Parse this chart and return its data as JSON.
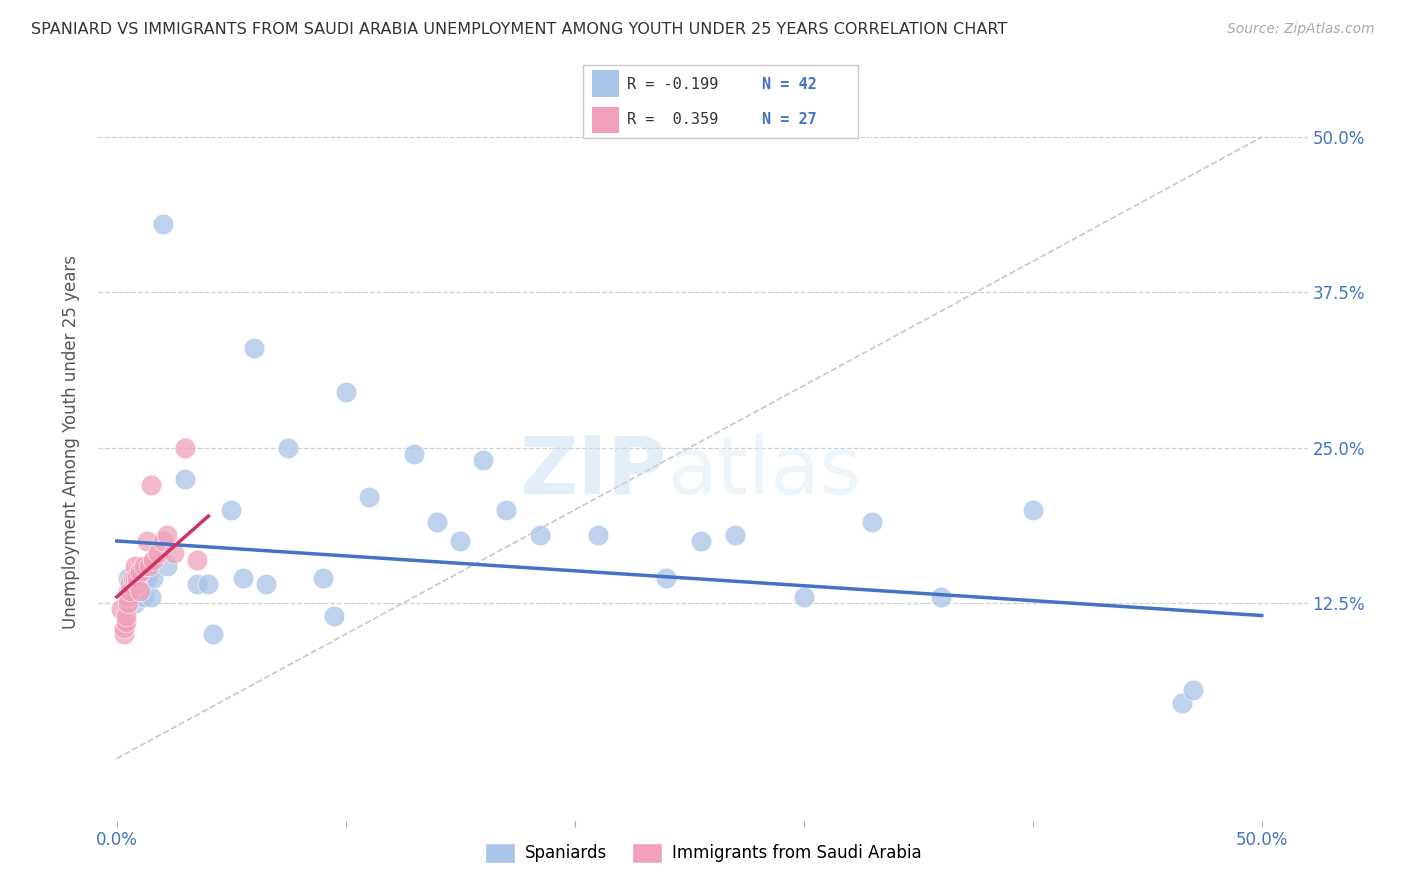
{
  "title": "SPANIARD VS IMMIGRANTS FROM SAUDI ARABIA UNEMPLOYMENT AMONG YOUTH UNDER 25 YEARS CORRELATION CHART",
  "source": "Source: ZipAtlas.com",
  "ylabel": "Unemployment Among Youth under 25 years",
  "ytick_values": [
    0.125,
    0.25,
    0.375,
    0.5
  ],
  "ytick_labels": [
    "12.5%",
    "25.0%",
    "37.5%",
    "50.0%"
  ],
  "xlim": [
    0.0,
    0.5
  ],
  "ylim": [
    -0.05,
    0.56
  ],
  "watermark_zip": "ZIP",
  "watermark_atlas": "atlas",
  "blue_color": "#a8c4e8",
  "pink_color": "#f0a0b8",
  "blue_line_color": "#4472c4",
  "pink_line_color": "#cc3366",
  "diag_line_color": "#c8c8c8",
  "legend_r1_text": "R = -0.199",
  "legend_n1_text": "N = 42",
  "legend_r2_text": "R =  0.359",
  "legend_n2_text": "N = 27",
  "spaniards_x": [
    0.005,
    0.005,
    0.008,
    0.01,
    0.01,
    0.012,
    0.012,
    0.013,
    0.013,
    0.015,
    0.016,
    0.02,
    0.022,
    0.03,
    0.035,
    0.04,
    0.042,
    0.05,
    0.055,
    0.06,
    0.065,
    0.075,
    0.09,
    0.095,
    0.1,
    0.11,
    0.13,
    0.14,
    0.15,
    0.16,
    0.17,
    0.185,
    0.21,
    0.24,
    0.255,
    0.27,
    0.3,
    0.33,
    0.36,
    0.4,
    0.465,
    0.47
  ],
  "spaniards_y": [
    0.145,
    0.135,
    0.125,
    0.15,
    0.14,
    0.145,
    0.13,
    0.145,
    0.155,
    0.13,
    0.145,
    0.43,
    0.155,
    0.225,
    0.14,
    0.14,
    0.1,
    0.2,
    0.145,
    0.33,
    0.14,
    0.25,
    0.145,
    0.115,
    0.295,
    0.21,
    0.245,
    0.19,
    0.175,
    0.24,
    0.2,
    0.18,
    0.18,
    0.145,
    0.175,
    0.18,
    0.13,
    0.19,
    0.13,
    0.2,
    0.045,
    0.055
  ],
  "saudi_x": [
    0.002,
    0.003,
    0.003,
    0.004,
    0.004,
    0.005,
    0.005,
    0.006,
    0.006,
    0.007,
    0.008,
    0.008,
    0.009,
    0.009,
    0.01,
    0.01,
    0.012,
    0.013,
    0.014,
    0.015,
    0.016,
    0.018,
    0.02,
    0.022,
    0.025,
    0.03,
    0.035
  ],
  "saudi_y": [
    0.12,
    0.1,
    0.105,
    0.11,
    0.115,
    0.13,
    0.125,
    0.14,
    0.135,
    0.145,
    0.155,
    0.145,
    0.14,
    0.145,
    0.15,
    0.135,
    0.155,
    0.175,
    0.155,
    0.22,
    0.16,
    0.165,
    0.175,
    0.18,
    0.165,
    0.25,
    0.16
  ],
  "blue_trend_x": [
    0.0,
    0.5
  ],
  "blue_trend_y": [
    0.175,
    0.115
  ],
  "pink_trend_x": [
    0.0,
    0.04
  ],
  "pink_trend_y": [
    0.13,
    0.195
  ]
}
